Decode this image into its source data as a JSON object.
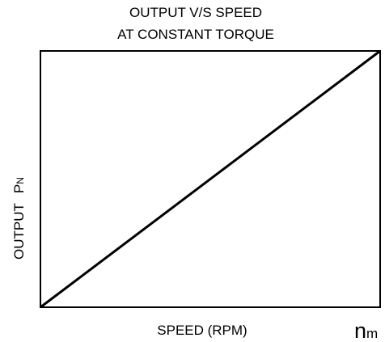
{
  "title": [
    "OUTPUT V/S SPEED",
    "AT CONSTANT TORQUE"
  ],
  "x_axis": {
    "label": "SPEED (RPM)",
    "symbol": "n",
    "subscript": "m"
  },
  "y_axis": {
    "label": "OUTPUT",
    "symbol": "P",
    "subscript": "N"
  }
}
